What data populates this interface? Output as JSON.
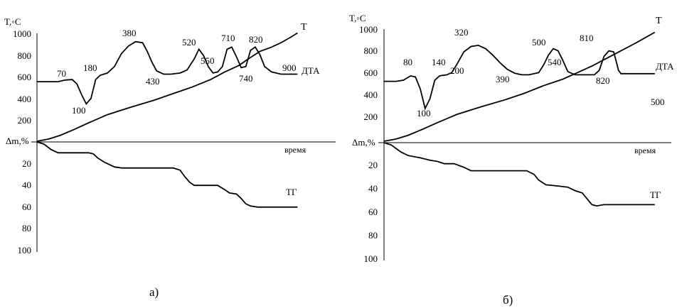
{
  "chart_data": [
    {
      "type": "line",
      "panel_label": "а)",
      "temp_axis_label": "T,◦C",
      "mass_axis_label": "Δm,%",
      "time_label": "время",
      "temp_ticks": [
        "1000",
        "800",
        "600",
        "400",
        "200"
      ],
      "mass_ticks": [
        "20",
        "40",
        "60",
        "80",
        "100"
      ],
      "series": [
        {
          "name": "T",
          "points": [
            [
              0,
              0
            ],
            [
              5,
              20
            ],
            [
              10,
              55
            ],
            [
              16,
              110
            ],
            [
              22,
              170
            ],
            [
              30,
              245
            ],
            [
              40,
              315
            ],
            [
              50,
              380
            ],
            [
              58,
              440
            ],
            [
              66,
              500
            ],
            [
              74,
              570
            ],
            [
              80,
              640
            ],
            [
              86,
              700
            ],
            [
              90,
              760
            ],
            [
              95,
              830
            ],
            [
              100,
              870
            ],
            [
              104,
              910
            ],
            [
              108,
              960
            ],
            [
              111,
              1000
            ]
          ]
        },
        {
          "name": "ДТА",
          "points": [
            [
              0,
              550
            ],
            [
              5,
              550
            ],
            [
              9,
              550
            ],
            [
              12,
              565
            ],
            [
              15,
              570
            ],
            [
              17,
              530
            ],
            [
              19,
              430
            ],
            [
              21,
              345
            ],
            [
              23,
              395
            ],
            [
              25,
              570
            ],
            [
              27,
              610
            ],
            [
              30,
              630
            ],
            [
              33,
              690
            ],
            [
              36,
              810
            ],
            [
              39,
              880
            ],
            [
              42,
              920
            ],
            [
              45,
              910
            ],
            [
              47,
              830
            ],
            [
              49,
              730
            ],
            [
              51,
              650
            ],
            [
              54,
              620
            ],
            [
              57,
              620
            ],
            [
              61,
              630
            ],
            [
              64,
              660
            ],
            [
              67,
              760
            ],
            [
              69,
              850
            ],
            [
              71,
              790
            ],
            [
              73,
              690
            ],
            [
              75,
              630
            ],
            [
              77,
              640
            ],
            [
              79,
              690
            ],
            [
              81,
              850
            ],
            [
              83,
              870
            ],
            [
              85,
              780
            ],
            [
              87,
              680
            ],
            [
              89,
              690
            ],
            [
              91,
              840
            ],
            [
              93,
              870
            ],
            [
              95,
              800
            ],
            [
              97,
              690
            ],
            [
              100,
              640
            ],
            [
              104,
              620
            ],
            [
              111,
              620
            ]
          ]
        },
        {
          "name": "ТГ",
          "points": [
            [
              0,
              0
            ],
            [
              3,
              2
            ],
            [
              6,
              7
            ],
            [
              9,
              10
            ],
            [
              14,
              10
            ],
            [
              22,
              10
            ],
            [
              24,
              11
            ],
            [
              26,
              15
            ],
            [
              29,
              19
            ],
            [
              31,
              21
            ],
            [
              33,
              23
            ],
            [
              36,
              24
            ],
            [
              44,
              24
            ],
            [
              55,
              24
            ],
            [
              58,
              24
            ],
            [
              61,
              26
            ],
            [
              63,
              32
            ],
            [
              65,
              37
            ],
            [
              67,
              40
            ],
            [
              72,
              40
            ],
            [
              77,
              40
            ],
            [
              80,
              44
            ],
            [
              82,
              47
            ],
            [
              85,
              48
            ],
            [
              87,
              52
            ],
            [
              89,
              57
            ],
            [
              91,
              59
            ],
            [
              94,
              60
            ],
            [
              100,
              60
            ],
            [
              111,
              60
            ]
          ]
        }
      ],
      "annotations": [
        "70",
        "100",
        "180",
        "380",
        "430",
        "520",
        "550",
        "710",
        "740",
        "820",
        "900"
      ]
    },
    {
      "type": "line",
      "panel_label": "б)",
      "temp_axis_label": "T,◦C",
      "mass_axis_label": "Δm,%",
      "time_label": "время",
      "temp_ticks": [
        "1000",
        "800",
        "600",
        "400",
        "200"
      ],
      "mass_ticks": [
        "20",
        "40",
        "60",
        "80",
        "100"
      ],
      "series": [
        {
          "name": "T",
          "points": [
            [
              0,
              0
            ],
            [
              5,
              20
            ],
            [
              10,
              55
            ],
            [
              16,
              110
            ],
            [
              22,
              170
            ],
            [
              30,
              245
            ],
            [
              40,
              315
            ],
            [
              50,
              380
            ],
            [
              58,
              440
            ],
            [
              66,
              510
            ],
            [
              74,
              570
            ],
            [
              80,
              630
            ],
            [
              86,
              690
            ],
            [
              92,
              760
            ],
            [
              98,
              830
            ],
            [
              104,
              900
            ],
            [
              108,
              950
            ],
            [
              112,
              1000
            ]
          ]
        },
        {
          "name": "ДТА",
          "points": [
            [
              0,
              550
            ],
            [
              5,
              550
            ],
            [
              8,
              560
            ],
            [
              11,
              600
            ],
            [
              13,
              590
            ],
            [
              15,
              480
            ],
            [
              17,
              300
            ],
            [
              19,
              390
            ],
            [
              21,
              560
            ],
            [
              23,
              600
            ],
            [
              26,
              610
            ],
            [
              28,
              630
            ],
            [
              30,
              700
            ],
            [
              33,
              820
            ],
            [
              36,
              870
            ],
            [
              39,
              880
            ],
            [
              42,
              850
            ],
            [
              45,
              790
            ],
            [
              48,
              720
            ],
            [
              51,
              660
            ],
            [
              54,
              625
            ],
            [
              57,
              610
            ],
            [
              60,
              610
            ],
            [
              64,
              630
            ],
            [
              66,
              700
            ],
            [
              68,
              790
            ],
            [
              70,
              850
            ],
            [
              72,
              830
            ],
            [
              74,
              740
            ],
            [
              76,
              640
            ],
            [
              79,
              610
            ],
            [
              83,
              610
            ],
            [
              87,
              610
            ],
            [
              89,
              650
            ],
            [
              91,
              780
            ],
            [
              93,
              830
            ],
            [
              95,
              820
            ],
            [
              97,
              650
            ],
            [
              98,
              620
            ],
            [
              101,
              620
            ],
            [
              112,
              620
            ]
          ]
        },
        {
          "name": "ТГ",
          "points": [
            [
              0,
              0
            ],
            [
              3,
              2
            ],
            [
              7,
              8
            ],
            [
              10,
              11
            ],
            [
              15,
              13
            ],
            [
              19,
              15
            ],
            [
              22,
              16
            ],
            [
              25,
              18
            ],
            [
              29,
              18
            ],
            [
              33,
              21
            ],
            [
              36,
              24
            ],
            [
              44,
              24
            ],
            [
              55,
              24
            ],
            [
              59,
              24
            ],
            [
              62,
              27
            ],
            [
              64,
              32
            ],
            [
              67,
              36
            ],
            [
              72,
              37
            ],
            [
              76,
              38
            ],
            [
              79,
              41
            ],
            [
              82,
              43
            ],
            [
              84,
              48
            ],
            [
              86,
              53
            ],
            [
              88,
              54
            ],
            [
              91,
              53
            ],
            [
              100,
              53
            ],
            [
              112,
              53
            ]
          ]
        }
      ],
      "annotations": [
        "80",
        "140",
        "100",
        "200",
        "320",
        "390",
        "500",
        "540",
        "810",
        "820",
        "500"
      ]
    }
  ]
}
